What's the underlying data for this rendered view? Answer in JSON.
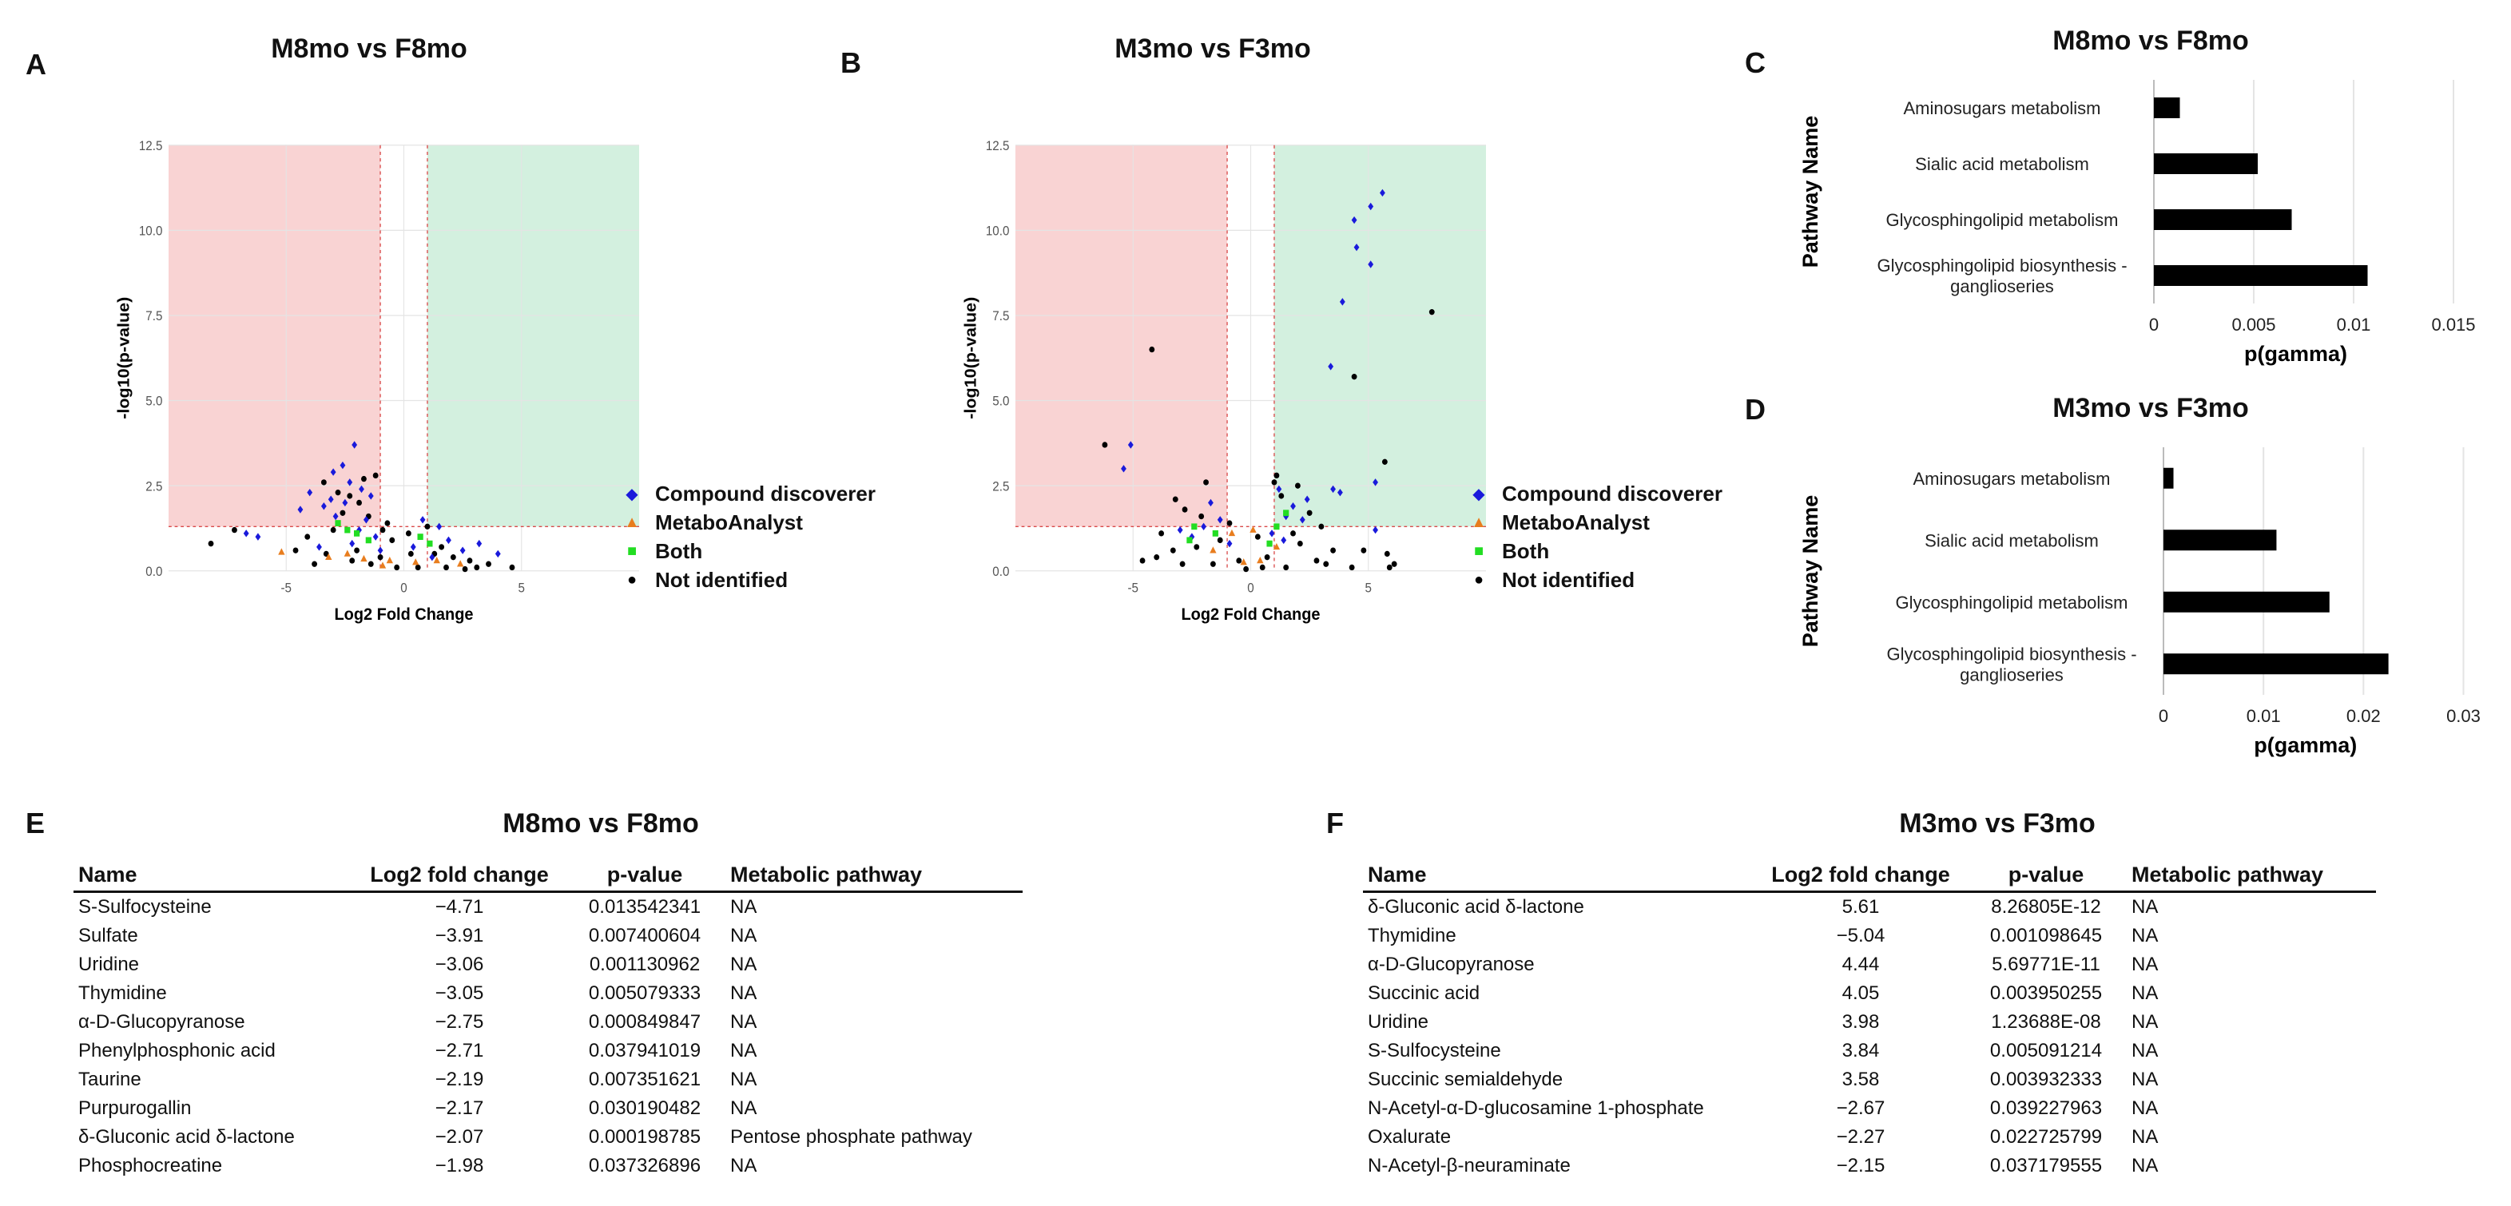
{
  "panels": {
    "A": {
      "letter": "A",
      "title": "M8mo vs F8mo"
    },
    "B": {
      "letter": "B",
      "title": "M3mo vs F3mo"
    },
    "C": {
      "letter": "C",
      "title": "M8mo vs F8mo"
    },
    "D": {
      "letter": "D",
      "title": "M3mo vs F3mo"
    },
    "E": {
      "letter": "E",
      "title": "M8mo vs F8mo"
    },
    "F": {
      "letter": "F",
      "title": "M3mo vs F3mo"
    }
  },
  "legend": {
    "items": [
      {
        "label": "Compound discoverer",
        "symbol": "◆",
        "color": "#1a1adb"
      },
      {
        "label": "MetaboAnalyst",
        "symbol": "▲",
        "color": "#e87d1e"
      },
      {
        "label": "Both",
        "symbol": "■",
        "color": "#22dd22"
      },
      {
        "label": "Not identified",
        "symbol": "●",
        "color": "#000000"
      }
    ]
  },
  "colors": {
    "down_region": "#f9d3d3",
    "up_region": "#d3f0df",
    "threshold_line": "#d94a4a",
    "bar": "#000000",
    "grid": "#e4e4e4"
  },
  "chart_data": [
    {
      "id": "A",
      "type": "scatter",
      "title": "M8mo vs F8mo",
      "xlabel": "Log2 Fold Change",
      "ylabel": "-log10(p-value)",
      "xlim": [
        -10,
        10
      ],
      "ylim": [
        0,
        12.5
      ],
      "xticks": [
        -5,
        0,
        5
      ],
      "xtick_labels": [
        "-5",
        "0",
        "5"
      ],
      "yticks": [
        0,
        2.5,
        5,
        7.5,
        10,
        12.5
      ],
      "ytick_labels": [
        "0.0",
        "2.5",
        "5.0",
        "7.5",
        "10.0",
        "12.5"
      ],
      "fc_threshold": 1,
      "p_threshold": 1.3,
      "series": [
        {
          "name": "Compound discoverer",
          "points": [
            [
              -2.1,
              3.7
            ],
            [
              -2.6,
              3.1
            ],
            [
              -3.0,
              2.9
            ],
            [
              -2.3,
              2.6
            ],
            [
              -4.0,
              2.3
            ],
            [
              -3.1,
              2.1
            ],
            [
              -2.5,
              2.0
            ],
            [
              -3.4,
              1.9
            ],
            [
              -4.4,
              1.8
            ],
            [
              -1.8,
              2.4
            ],
            [
              -1.4,
              2.2
            ],
            [
              -2.9,
              1.6
            ],
            [
              -1.9,
              1.2
            ],
            [
              -1.2,
              1.0
            ],
            [
              -2.2,
              0.8
            ],
            [
              0.8,
              1.5
            ],
            [
              1.5,
              1.3
            ],
            [
              1.9,
              0.9
            ],
            [
              2.5,
              0.6
            ],
            [
              3.2,
              0.8
            ],
            [
              4.0,
              0.5
            ],
            [
              -6.7,
              1.1
            ],
            [
              -6.2,
              1.0
            ],
            [
              -1.0,
              0.6
            ],
            [
              0.4,
              0.7
            ],
            [
              1.2,
              0.4
            ],
            [
              -3.6,
              0.7
            ],
            [
              -1.6,
              1.5
            ]
          ]
        },
        {
          "name": "MetaboAnalyst",
          "points": [
            [
              -5.2,
              0.55
            ],
            [
              -1.7,
              0.35
            ],
            [
              -0.6,
              0.3
            ],
            [
              0.5,
              0.25
            ],
            [
              1.4,
              0.3
            ],
            [
              -3.2,
              0.4
            ],
            [
              -2.4,
              0.5
            ],
            [
              2.4,
              0.2
            ],
            [
              -0.9,
              0.15
            ]
          ]
        },
        {
          "name": "Both",
          "points": [
            [
              -2.8,
              1.4
            ],
            [
              -2.0,
              1.1
            ],
            [
              -1.5,
              0.9
            ],
            [
              0.7,
              1.0
            ],
            [
              -2.4,
              1.2
            ],
            [
              1.1,
              0.8
            ]
          ]
        },
        {
          "name": "Not identified",
          "points": [
            [
              -8.2,
              0.8
            ],
            [
              -7.2,
              1.2
            ],
            [
              -3.4,
              2.6
            ],
            [
              -1.2,
              2.8
            ],
            [
              -2.8,
              2.3
            ],
            [
              -1.9,
              2.0
            ],
            [
              -2.6,
              1.7
            ],
            [
              -1.5,
              1.6
            ],
            [
              -0.9,
              1.2
            ],
            [
              -0.5,
              0.9
            ],
            [
              0.2,
              1.1
            ],
            [
              1.0,
              1.3
            ],
            [
              1.6,
              0.7
            ],
            [
              2.1,
              0.4
            ],
            [
              2.8,
              0.3
            ],
            [
              3.6,
              0.2
            ],
            [
              -4.1,
              1.0
            ],
            [
              -3.3,
              0.5
            ],
            [
              -2.2,
              0.3
            ],
            [
              -1.4,
              0.2
            ],
            [
              -0.3,
              0.1
            ],
            [
              0.6,
              0.1
            ],
            [
              1.8,
              0.1
            ],
            [
              2.6,
              0.05
            ],
            [
              3.1,
              0.1
            ],
            [
              -1.0,
              0.4
            ],
            [
              -2.0,
              0.6
            ],
            [
              0.3,
              0.5
            ],
            [
              -3.0,
              1.2
            ],
            [
              -1.7,
              2.7
            ],
            [
              -2.3,
              2.2
            ],
            [
              -0.7,
              1.4
            ],
            [
              1.3,
              0.5
            ],
            [
              -4.6,
              0.6
            ],
            [
              4.6,
              0.1
            ],
            [
              -3.8,
              0.2
            ]
          ]
        }
      ]
    },
    {
      "id": "B",
      "type": "scatter",
      "title": "M3mo vs F3mo",
      "xlabel": "Log2 Fold Change",
      "ylabel": "-log10(p-value)",
      "xlim": [
        -10,
        10
      ],
      "ylim": [
        0,
        12.5
      ],
      "xticks": [
        -5,
        0,
        5
      ],
      "xtick_labels": [
        "-5",
        "0",
        "5"
      ],
      "yticks": [
        0,
        2.5,
        5,
        7.5,
        10,
        12.5
      ],
      "ytick_labels": [
        "0.0",
        "2.5",
        "5.0",
        "7.5",
        "10.0",
        "12.5"
      ],
      "fc_threshold": 1,
      "p_threshold": 1.3,
      "series": [
        {
          "name": "Compound discoverer",
          "points": [
            [
              5.6,
              11.1
            ],
            [
              5.1,
              10.7
            ],
            [
              4.4,
              10.3
            ],
            [
              4.5,
              9.5
            ],
            [
              5.1,
              9.0
            ],
            [
              3.9,
              7.9
            ],
            [
              3.4,
              6.0
            ],
            [
              -5.1,
              3.7
            ],
            [
              -5.4,
              3.0
            ],
            [
              5.3,
              2.6
            ],
            [
              3.5,
              2.4
            ],
            [
              3.8,
              2.3
            ],
            [
              2.4,
              2.1
            ],
            [
              1.2,
              2.4
            ],
            [
              1.8,
              1.9
            ],
            [
              -1.7,
              2.0
            ],
            [
              -1.3,
              1.5
            ],
            [
              -2.0,
              1.3
            ],
            [
              1.5,
              1.6
            ],
            [
              2.2,
              1.5
            ],
            [
              -3.0,
              1.2
            ],
            [
              -2.5,
              1.0
            ],
            [
              0.9,
              1.1
            ],
            [
              1.4,
              0.9
            ],
            [
              -0.9,
              0.8
            ],
            [
              5.3,
              1.2
            ]
          ]
        },
        {
          "name": "MetaboAnalyst",
          "points": [
            [
              0.1,
              1.2
            ],
            [
              -0.8,
              1.1
            ],
            [
              1.1,
              0.7
            ],
            [
              -1.6,
              0.6
            ],
            [
              0.4,
              0.3
            ],
            [
              -0.3,
              0.25
            ]
          ]
        },
        {
          "name": "Both",
          "points": [
            [
              1.5,
              1.7
            ],
            [
              -2.4,
              1.3
            ],
            [
              -1.5,
              1.1
            ],
            [
              1.1,
              1.3
            ],
            [
              -2.6,
              0.9
            ],
            [
              0.8,
              0.8
            ]
          ]
        },
        {
          "name": "Not identified",
          "points": [
            [
              7.7,
              7.6
            ],
            [
              4.4,
              5.7
            ],
            [
              5.7,
              3.2
            ],
            [
              -4.2,
              6.5
            ],
            [
              -6.2,
              3.7
            ],
            [
              1.1,
              2.8
            ],
            [
              -1.9,
              2.6
            ],
            [
              -3.2,
              2.1
            ],
            [
              1.3,
              2.2
            ],
            [
              -2.8,
              1.8
            ],
            [
              2.5,
              1.7
            ],
            [
              3.0,
              1.3
            ],
            [
              -2.1,
              1.6
            ],
            [
              -0.9,
              1.4
            ],
            [
              0.3,
              1.0
            ],
            [
              1.8,
              1.1
            ],
            [
              -1.3,
              0.9
            ],
            [
              2.1,
              0.8
            ],
            [
              -2.3,
              0.7
            ],
            [
              3.5,
              0.6
            ],
            [
              4.8,
              0.6
            ],
            [
              5.8,
              0.5
            ],
            [
              -4.0,
              0.4
            ],
            [
              -3.3,
              0.6
            ],
            [
              0.7,
              0.4
            ],
            [
              -0.5,
              0.3
            ],
            [
              2.8,
              0.3
            ],
            [
              5.9,
              0.1
            ],
            [
              6.1,
              0.2
            ],
            [
              4.3,
              0.1
            ],
            [
              -1.6,
              0.2
            ],
            [
              1.5,
              0.1
            ],
            [
              -2.9,
              0.2
            ],
            [
              3.2,
              0.2
            ],
            [
              -0.2,
              0.05
            ],
            [
              0.5,
              0.1
            ],
            [
              -3.8,
              1.1
            ],
            [
              -4.6,
              0.3
            ],
            [
              2.0,
              2.5
            ],
            [
              1.0,
              2.6
            ]
          ]
        }
      ]
    },
    {
      "id": "C",
      "type": "bar",
      "orientation": "horizontal",
      "title": "M8mo vs F8mo",
      "xlabel": "p(gamma)",
      "ylabel": "Pathway Name",
      "categories": [
        "Aminosugars metabolism",
        "Sialic acid metabolism",
        "Glycosphingolipid metabolism",
        "Glycosphingolipid biosynthesis - ganglioseries"
      ],
      "category_lines": [
        [
          "Aminosugars metabolism"
        ],
        [
          "Sialic acid metabolism"
        ],
        [
          "Glycosphingolipid metabolism"
        ],
        [
          "Glycosphingolipid biosynthesis -",
          "ganglioseries"
        ]
      ],
      "values": [
        0.0013,
        0.0052,
        0.0069,
        0.0107
      ],
      "xlim": [
        0,
        0.016
      ],
      "xticks": [
        0,
        0.005,
        0.01,
        0.015
      ],
      "xtick_labels": [
        "0",
        "0.005",
        "0.01",
        "0.015"
      ]
    },
    {
      "id": "D",
      "type": "bar",
      "orientation": "horizontal",
      "title": "M3mo vs F3mo",
      "xlabel": "p(gamma)",
      "ylabel": "Pathway Name",
      "categories": [
        "Aminosugars metabolism",
        "Sialic acid metabolism",
        "Glycosphingolipid metabolism",
        "Glycosphingolipid biosynthesis - ganglioseries"
      ],
      "category_lines": [
        [
          "Aminosugars metabolism"
        ],
        [
          "Sialic acid metabolism"
        ],
        [
          "Glycosphingolipid metabolism"
        ],
        [
          "Glycosphingolipid biosynthesis -",
          "ganglioseries"
        ]
      ],
      "values": [
        0.001,
        0.0113,
        0.0166,
        0.0225
      ],
      "xlim": [
        0,
        0.031
      ],
      "xticks": [
        0,
        0.01,
        0.02,
        0.03
      ],
      "xtick_labels": [
        "0",
        "0.01",
        "0.02",
        "0.03"
      ]
    },
    {
      "id": "E",
      "type": "table",
      "title": "M8mo vs F8mo",
      "columns": [
        "Name",
        "Log2 fold change",
        "p-value",
        "Metabolic pathway"
      ],
      "rows": [
        [
          "S-Sulfocysteine",
          "−4.71",
          "0.013542341",
          "NA"
        ],
        [
          "Sulfate",
          "−3.91",
          "0.007400604",
          "NA"
        ],
        [
          "Uridine",
          "−3.06",
          "0.001130962",
          "NA"
        ],
        [
          "Thymidine",
          "−3.05",
          "0.005079333",
          "NA"
        ],
        [
          "α-D-Glucopyranose",
          "−2.75",
          "0.000849847",
          "NA"
        ],
        [
          "Phenylphosphonic acid",
          "−2.71",
          "0.037941019",
          "NA"
        ],
        [
          "Taurine",
          "−2.19",
          "0.007351621",
          "NA"
        ],
        [
          "Purpurogallin",
          "−2.17",
          "0.030190482",
          "NA"
        ],
        [
          "δ-Gluconic acid δ-lactone",
          "−2.07",
          "0.000198785",
          "Pentose phosphate pathway"
        ],
        [
          "Phosphocreatine",
          "−1.98",
          "0.037326896",
          "NA"
        ]
      ]
    },
    {
      "id": "F",
      "type": "table",
      "title": "M3mo vs F3mo",
      "columns": [
        "Name",
        "Log2 fold change",
        "p-value",
        "Metabolic pathway"
      ],
      "rows": [
        [
          "δ-Gluconic acid δ-lactone",
          "5.61",
          "8.26805E-12",
          "NA"
        ],
        [
          "Thymidine",
          "−5.04",
          "0.001098645",
          "NA"
        ],
        [
          "α-D-Glucopyranose",
          "4.44",
          "5.69771E-11",
          "NA"
        ],
        [
          "Succinic acid",
          "4.05",
          "0.003950255",
          "NA"
        ],
        [
          "Uridine",
          "3.98",
          "1.23688E-08",
          "NA"
        ],
        [
          "S-Sulfocysteine",
          "3.84",
          "0.005091214",
          "NA"
        ],
        [
          "Succinic semialdehyde",
          "3.58",
          "0.003932333",
          "NA"
        ],
        [
          "N-Acetyl-α-D-glucosamine 1-phosphate",
          "−2.67",
          "0.039227963",
          "NA"
        ],
        [
          "Oxalurate",
          "−2.27",
          "0.022725799",
          "NA"
        ],
        [
          "N-Acetyl-β-neuraminate",
          "−2.15",
          "0.037179555",
          "NA"
        ]
      ]
    }
  ]
}
